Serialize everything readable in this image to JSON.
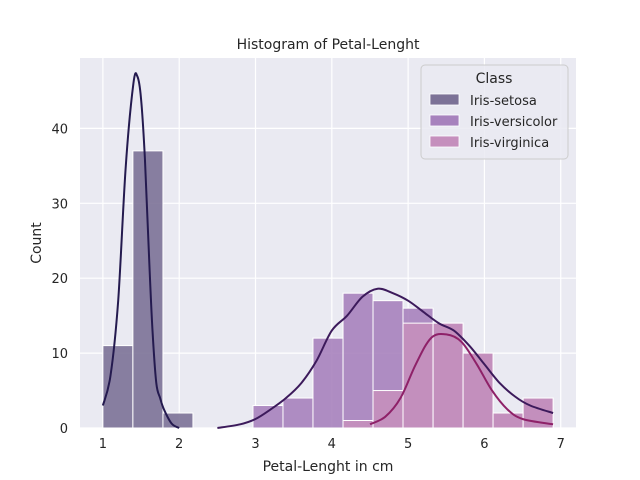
{
  "chart_data": {
    "type": "histogram",
    "title": "Histogram of Petal-Lenght",
    "xlabel": "Petal-Lenght in cm",
    "ylabel": "Count",
    "xlim": [
      0.7,
      7.2
    ],
    "ylim": [
      0,
      49.4
    ],
    "xticks": [
      1,
      2,
      3,
      4,
      5,
      6,
      7
    ],
    "yticks": [
      0,
      10,
      20,
      30,
      40
    ],
    "grid": true,
    "legend": {
      "title": "Class",
      "placement": "top-right",
      "entries": [
        "Iris-setosa",
        "Iris-versicolor",
        "Iris-virginica"
      ]
    },
    "bin_edges": [
      1.0,
      1.393,
      1.787,
      2.18,
      2.573,
      2.967,
      3.36,
      3.753,
      4.147,
      4.54,
      4.933,
      5.327,
      5.72,
      6.113,
      6.507,
      6.9
    ],
    "series": [
      {
        "name": "Iris-setosa",
        "color": "#241a4f",
        "bar_color": "#7c7297",
        "counts": [
          11,
          37,
          2,
          0,
          0,
          0,
          0,
          0,
          0,
          0,
          0,
          0,
          0,
          0,
          0
        ],
        "kde": [
          [
            1.0,
            3
          ],
          [
            1.1,
            7
          ],
          [
            1.2,
            17
          ],
          [
            1.3,
            35
          ],
          [
            1.4,
            46
          ],
          [
            1.45,
            47
          ],
          [
            1.5,
            44
          ],
          [
            1.55,
            36
          ],
          [
            1.6,
            24
          ],
          [
            1.65,
            13
          ],
          [
            1.7,
            6
          ],
          [
            1.75,
            4
          ],
          [
            1.8,
            2.5
          ],
          [
            1.9,
            0.6
          ],
          [
            2.0,
            0
          ]
        ]
      },
      {
        "name": "Iris-versicolor",
        "color": "#3c1a5b",
        "bar_color": "#a782bd",
        "counts": [
          0,
          0,
          0,
          0,
          0,
          3,
          4,
          12,
          18,
          17,
          16,
          14,
          10,
          2,
          4
        ],
        "kde": [
          [
            2.5,
            0
          ],
          [
            2.8,
            0.5
          ],
          [
            3.0,
            1.2
          ],
          [
            3.2,
            2.5
          ],
          [
            3.4,
            4
          ],
          [
            3.6,
            6
          ],
          [
            3.8,
            9
          ],
          [
            4.0,
            13
          ],
          [
            4.2,
            15
          ],
          [
            4.4,
            17.5
          ],
          [
            4.6,
            18.6
          ],
          [
            4.8,
            18
          ],
          [
            5.0,
            17
          ],
          [
            5.2,
            15.5
          ],
          [
            5.4,
            14
          ],
          [
            5.6,
            13
          ],
          [
            5.8,
            11
          ],
          [
            6.0,
            8.5
          ],
          [
            6.2,
            6
          ],
          [
            6.4,
            4.2
          ],
          [
            6.6,
            3
          ],
          [
            6.9,
            2
          ]
        ]
      },
      {
        "name": "Iris-virginica",
        "color": "#8e2168",
        "bar_color": "#c58fbd",
        "counts": [
          0,
          0,
          0,
          0,
          0,
          0,
          0,
          0,
          1,
          5,
          14,
          14,
          10,
          2,
          4
        ],
        "kde": [
          [
            4.5,
            0.5
          ],
          [
            4.7,
            1.5
          ],
          [
            4.9,
            4
          ],
          [
            5.1,
            8.5
          ],
          [
            5.3,
            12
          ],
          [
            5.5,
            12.5
          ],
          [
            5.7,
            11.5
          ],
          [
            5.9,
            8.5
          ],
          [
            6.1,
            5
          ],
          [
            6.3,
            2.5
          ],
          [
            6.5,
            1.2
          ],
          [
            6.9,
            0.5
          ]
        ]
      }
    ]
  }
}
